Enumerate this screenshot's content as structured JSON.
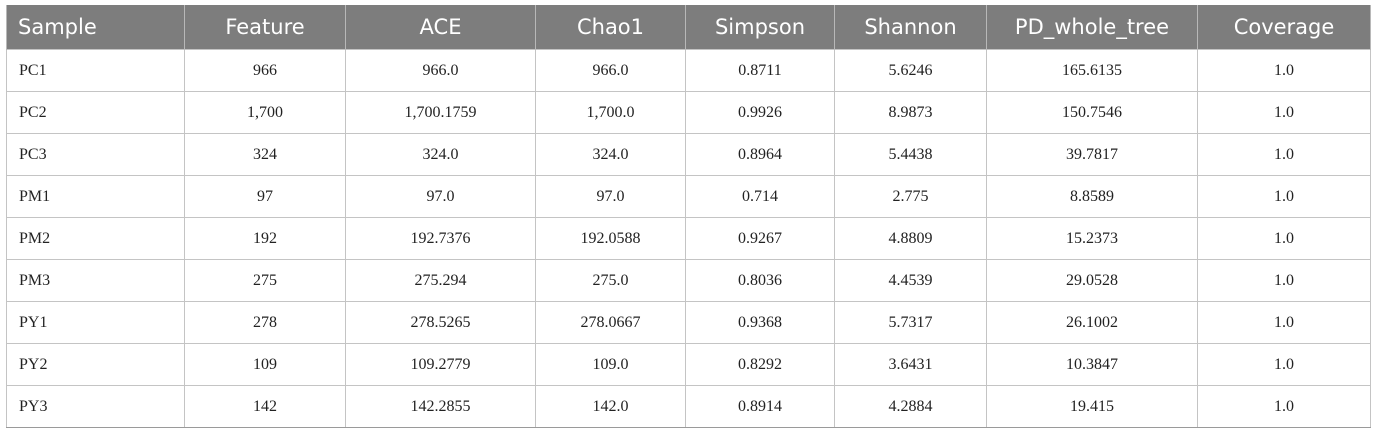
{
  "table": {
    "headers": [
      "Sample",
      "Feature",
      "ACE",
      "Chao1",
      "Simpson",
      "Shannon",
      "PD_whole_tree",
      "Coverage"
    ],
    "rows": [
      [
        "PC1",
        "966",
        "966.0",
        "966.0",
        "0.8711",
        "5.6246",
        "165.6135",
        "1.0"
      ],
      [
        "PC2",
        "1,700",
        "1,700.1759",
        "1,700.0",
        "0.9926",
        "8.9873",
        "150.7546",
        "1.0"
      ],
      [
        "PC3",
        "324",
        "324.0",
        "324.0",
        "0.8964",
        "5.4438",
        "39.7817",
        "1.0"
      ],
      [
        "PM1",
        "97",
        "97.0",
        "97.0",
        "0.714",
        "2.775",
        "8.8589",
        "1.0"
      ],
      [
        "PM2",
        "192",
        "192.7376",
        "192.0588",
        "0.9267",
        "4.8809",
        "15.2373",
        "1.0"
      ],
      [
        "PM3",
        "275",
        "275.294",
        "275.0",
        "0.8036",
        "4.4539",
        "29.0528",
        "1.0"
      ],
      [
        "PY1",
        "278",
        "278.5265",
        "278.0667",
        "0.9368",
        "5.7317",
        "26.1002",
        "1.0"
      ],
      [
        "PY2",
        "109",
        "109.2779",
        "109.0",
        "0.8292",
        "3.6431",
        "10.3847",
        "1.0"
      ],
      [
        "PY3",
        "142",
        "142.2855",
        "142.0",
        "0.8914",
        "4.2884",
        "19.415",
        "1.0"
      ]
    ]
  },
  "colors": {
    "header_bg": "#7d7d7d",
    "header_text": "#ffffff",
    "cell_text": "#222222",
    "grid_line": "#c4c4c4"
  }
}
